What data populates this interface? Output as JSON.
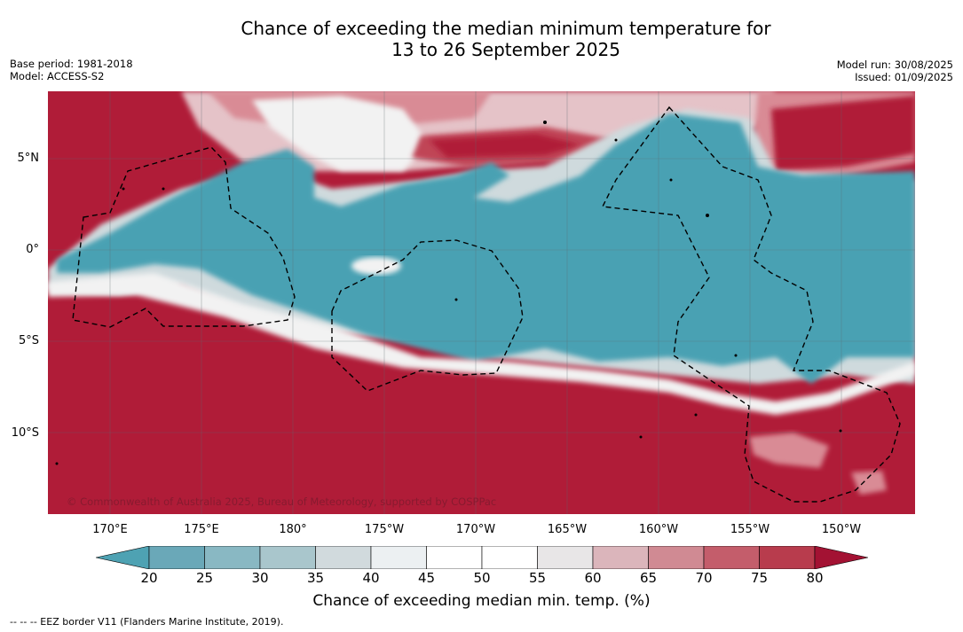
{
  "header": {
    "title_line1": "Chance of exceeding the median minimum temperature for",
    "title_line2": "13 to 26 September 2025",
    "base_period": "Base period: 1981-2018",
    "model": "Model: ACCESS-S2",
    "model_run": "Model run: 30/08/2025",
    "issued": "Issued: 01/09/2025"
  },
  "map": {
    "copyright": "© Commonwealth of Australia 2025, Bureau of Meteorology, supported by COSPPac",
    "lat_labels": [
      "5°N",
      "0°",
      "5°S",
      "10°S"
    ],
    "lon_labels": [
      "170°E",
      "175°E",
      "180°",
      "175°W",
      "170°W",
      "165°W",
      "160°W",
      "155°W",
      "150°W"
    ],
    "region_colors": {
      "warm_strong": "#b01c38",
      "warm_mid": "#c04456",
      "warm_light": "#d98b95",
      "warm_pale": "#e5c3c8",
      "neutral": "#f2f2f2",
      "cool_pale": "#cfdadd",
      "cool_light": "#a9c9d0",
      "cool_strong": "#4aa1b3"
    }
  },
  "colorbar": {
    "label": "Chance of exceeding median min. temp. (%)",
    "ticks": [
      "20",
      "25",
      "30",
      "35",
      "40",
      "45",
      "50",
      "55",
      "60",
      "65",
      "70",
      "75",
      "80"
    ],
    "colors": [
      "#4ea2b3",
      "#6aa8b8",
      "#89b8c3",
      "#a9c6cc",
      "#d1dadd",
      "#ecf0f2",
      "#ffffff",
      "#ffffff",
      "#e8e6e7",
      "#dbb5bb",
      "#d08a93",
      "#c45d6b",
      "#b83c4d",
      "#a31233"
    ]
  },
  "footer": {
    "eez_note": "--  --  -- EEZ border V11 (Flanders Marine Institute, 2019)."
  }
}
